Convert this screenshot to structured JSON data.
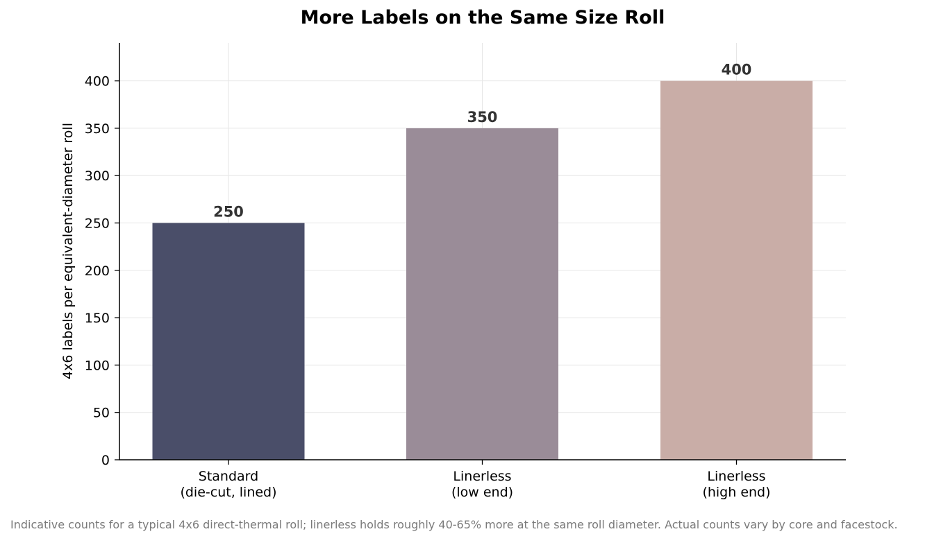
{
  "chart_data": {
    "type": "bar",
    "title": "More Labels on the Same Size Roll",
    "xlabel": "",
    "ylabel": "4x6 labels per equivalent-diameter roll",
    "categories": [
      [
        "Standard",
        "(die-cut, lined)"
      ],
      [
        "Linerless",
        "(low end)"
      ],
      [
        "Linerless",
        "(high end)"
      ]
    ],
    "values": [
      250,
      350,
      400
    ],
    "data_labels": [
      "250",
      "350",
      "400"
    ],
    "bar_colors": [
      "#4a4e69",
      "#9a8c98",
      "#c9ada7"
    ],
    "ylim": [
      0,
      440
    ],
    "yticks": [
      0,
      50,
      100,
      150,
      200,
      250,
      300,
      350,
      400
    ],
    "grid": true,
    "footnote": "Indicative counts for a typical 4x6 direct-thermal roll; linerless holds roughly 40-65% more at the same roll diameter. Actual counts vary by core and facestock."
  }
}
